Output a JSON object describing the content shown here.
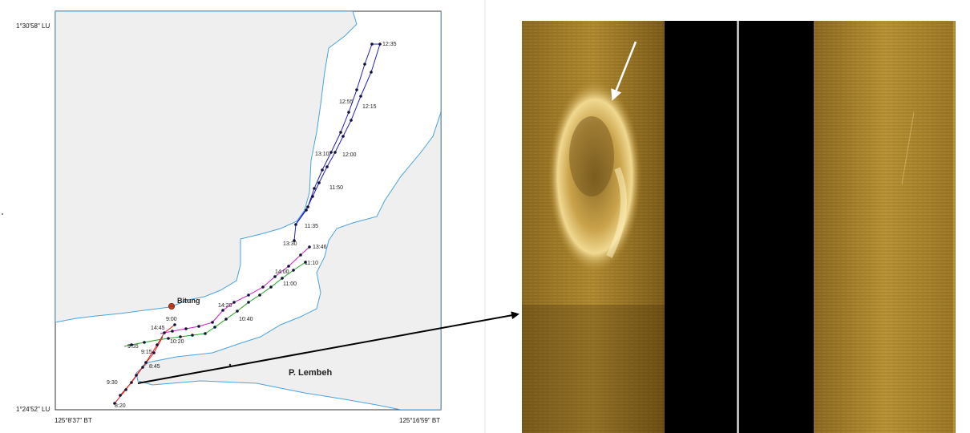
{
  "map": {
    "lat_top": "1°30'58\" LU",
    "lat_bottom": "1°24'52\" LU",
    "lon_left": "125°8'37\" BT",
    "lon_right": "125°16'59\" BT",
    "town": "Bitung",
    "island": "P. Lembeh",
    "colors": {
      "land": "#efefef",
      "sea": "#ffffff",
      "coast": "#4aa3e0",
      "red": "#e02020",
      "blue": "#2020c0",
      "magenta": "#d020d0",
      "green": "#20a020",
      "town_marker": "#d04020"
    },
    "times": [
      "12:35",
      "12:55",
      "12:15",
      "13:10",
      "12:00",
      "11:50",
      "11:35",
      "13:30",
      "13:46",
      "11:10",
      "14:00",
      "11:00",
      "14:20",
      "10:40",
      "14:45",
      "9:00",
      "10:20",
      "9:55",
      "9:15",
      "8:45",
      "9:30",
      "8:20"
    ]
  },
  "sonar": {
    "colors": {
      "seabed": "#a07a28",
      "bright": "#ffe9a0",
      "water_column": "#000000",
      "nadir": "#b8b8b8"
    }
  }
}
